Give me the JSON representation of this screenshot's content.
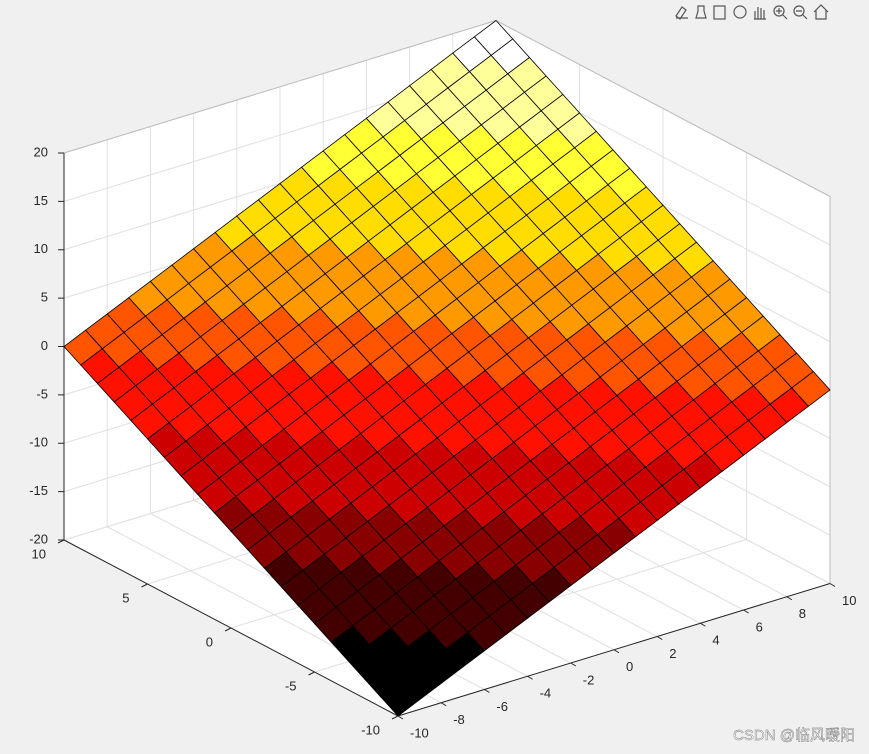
{
  "chart_data": {
    "type": "surface",
    "colormap": "hot",
    "edge_color": "#000000",
    "x": [
      -10,
      -9,
      -8,
      -7,
      -6,
      -5,
      -4,
      -3,
      -2,
      -1,
      0,
      1,
      2,
      3,
      4,
      5,
      6,
      7,
      8,
      9,
      10
    ],
    "y": [
      -10,
      -9,
      -8,
      -7,
      -6,
      -5,
      -4,
      -3,
      -2,
      -1,
      0,
      1,
      2,
      3,
      4,
      5,
      6,
      7,
      8,
      9,
      10
    ],
    "z": [
      [
        -20,
        -19,
        -18,
        -17,
        -16,
        -15,
        -14,
        -13,
        -12,
        -11,
        -10,
        -9,
        -8,
        -7,
        -6,
        -5,
        -4,
        -3,
        -2,
        -1,
        0
      ],
      [
        -19,
        -18,
        -17,
        -16,
        -15,
        -14,
        -13,
        -12,
        -11,
        -10,
        -9,
        -8,
        -7,
        -6,
        -5,
        -4,
        -3,
        -2,
        -1,
        0,
        1
      ],
      [
        -18,
        -17,
        -16,
        -15,
        -14,
        -13,
        -12,
        -11,
        -10,
        -9,
        -8,
        -7,
        -6,
        -5,
        -4,
        -3,
        -2,
        -1,
        0,
        1,
        2
      ],
      [
        -17,
        -16,
        -15,
        -14,
        -13,
        -12,
        -11,
        -10,
        -9,
        -8,
        -7,
        -6,
        -5,
        -4,
        -3,
        -2,
        -1,
        0,
        1,
        2,
        3
      ],
      [
        -16,
        -15,
        -14,
        -13,
        -12,
        -11,
        -10,
        -9,
        -8,
        -7,
        -6,
        -5,
        -4,
        -3,
        -2,
        -1,
        0,
        1,
        2,
        3,
        4
      ],
      [
        -15,
        -14,
        -13,
        -12,
        -11,
        -10,
        -9,
        -8,
        -7,
        -6,
        -5,
        -4,
        -3,
        -2,
        -1,
        0,
        1,
        2,
        3,
        4,
        5
      ],
      [
        -14,
        -13,
        -12,
        -11,
        -10,
        -9,
        -8,
        -7,
        -6,
        -5,
        -4,
        -3,
        -2,
        -1,
        0,
        1,
        2,
        3,
        4,
        5,
        6
      ],
      [
        -13,
        -12,
        -11,
        -10,
        -9,
        -8,
        -7,
        -6,
        -5,
        -4,
        -3,
        -2,
        -1,
        0,
        1,
        2,
        3,
        4,
        5,
        6,
        7
      ],
      [
        -12,
        -11,
        -10,
        -9,
        -8,
        -7,
        -6,
        -5,
        -4,
        -3,
        -2,
        -1,
        0,
        1,
        2,
        3,
        4,
        5,
        6,
        7,
        8
      ],
      [
        -11,
        -10,
        -9,
        -8,
        -7,
        -6,
        -5,
        -4,
        -3,
        -2,
        -1,
        0,
        1,
        2,
        3,
        4,
        5,
        6,
        7,
        8,
        9
      ],
      [
        -10,
        -9,
        -8,
        -7,
        -6,
        -5,
        -4,
        -3,
        -2,
        -1,
        0,
        1,
        2,
        3,
        4,
        5,
        6,
        7,
        8,
        9,
        10
      ],
      [
        -9,
        -8,
        -7,
        -6,
        -5,
        -4,
        -3,
        -2,
        -1,
        0,
        1,
        2,
        3,
        4,
        5,
        6,
        7,
        8,
        9,
        10,
        11
      ],
      [
        -8,
        -7,
        -6,
        -5,
        -4,
        -3,
        -2,
        -1,
        0,
        1,
        2,
        3,
        4,
        5,
        6,
        7,
        8,
        9,
        10,
        11,
        12
      ],
      [
        -7,
        -6,
        -5,
        -4,
        -3,
        -2,
        -1,
        0,
        1,
        2,
        3,
        4,
        5,
        6,
        7,
        8,
        9,
        10,
        11,
        12,
        13
      ],
      [
        -6,
        -5,
        -4,
        -3,
        -2,
        -1,
        0,
        1,
        2,
        3,
        4,
        5,
        6,
        7,
        8,
        9,
        10,
        11,
        12,
        13,
        14
      ],
      [
        -5,
        -4,
        -3,
        -2,
        -1,
        0,
        1,
        2,
        3,
        4,
        5,
        6,
        7,
        8,
        9,
        10,
        11,
        12,
        13,
        14,
        15
      ],
      [
        -4,
        -3,
        -2,
        -1,
        0,
        1,
        2,
        3,
        4,
        5,
        6,
        7,
        8,
        9,
        10,
        11,
        12,
        13,
        14,
        15,
        16
      ],
      [
        -3,
        -2,
        -1,
        0,
        1,
        2,
        3,
        4,
        5,
        6,
        7,
        8,
        9,
        10,
        11,
        12,
        13,
        14,
        15,
        16,
        17
      ],
      [
        -2,
        -1,
        0,
        1,
        2,
        3,
        4,
        5,
        6,
        7,
        8,
        9,
        10,
        11,
        12,
        13,
        14,
        15,
        16,
        17,
        18
      ],
      [
        -1,
        0,
        1,
        2,
        3,
        4,
        5,
        6,
        7,
        8,
        9,
        10,
        11,
        12,
        13,
        14,
        15,
        16,
        17,
        18,
        19
      ],
      [
        0,
        1,
        2,
        3,
        4,
        5,
        6,
        7,
        8,
        9,
        10,
        11,
        12,
        13,
        14,
        15,
        16,
        17,
        18,
        19,
        20
      ]
    ],
    "xlim": [
      -10,
      10
    ],
    "ylim": [
      -10,
      10
    ],
    "zlim": [
      -20,
      20
    ],
    "xticks": [
      -10,
      -8,
      -6,
      -4,
      -2,
      0,
      2,
      4,
      6,
      8,
      10
    ],
    "yticks": [
      -10,
      -5,
      0,
      5,
      10
    ],
    "zticks": [
      -20,
      -15,
      -10,
      -5,
      0,
      5,
      10,
      15,
      20
    ],
    "grid": true
  },
  "watermark": "CSDN @临风暖阳"
}
